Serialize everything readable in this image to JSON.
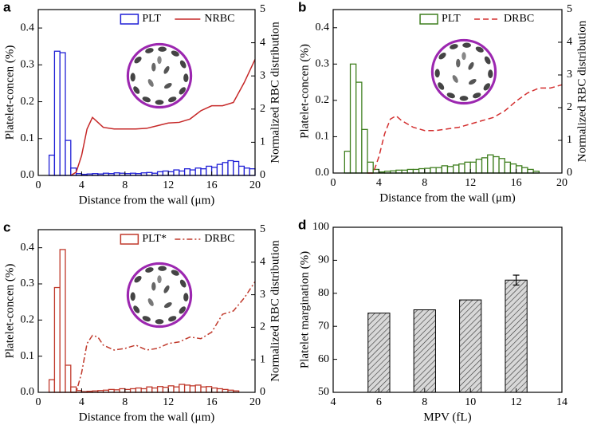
{
  "chart_data": [
    {
      "type": "histogram",
      "label": "a",
      "ylabel": "Platelet-concen (%)",
      "y2label": "Normalized RBC distribution",
      "xlabel": "Distance from the wall (μm)",
      "name": "PLT",
      "color": "#1f1fd6",
      "bins": [
        0,
        0.5,
        1,
        1.5,
        2,
        2.5,
        3,
        3.5,
        4,
        4.5,
        5,
        5.5,
        6,
        6.5,
        7,
        7.5,
        8,
        8.5,
        9,
        9.5,
        10,
        10.5,
        11,
        11.5,
        12,
        12.5,
        13,
        13.5,
        14,
        14.5,
        15,
        15.5,
        16,
        16.5,
        17,
        17.5,
        18,
        18.5,
        19,
        19.5,
        20
      ],
      "values": [
        0,
        0,
        0.055,
        0.337,
        0.333,
        0.095,
        0.02,
        0.005,
        0.003,
        0.004,
        0.005,
        0.004,
        0.006,
        0.005,
        0.007,
        0.006,
        0.005,
        0.006,
        0.005,
        0.007,
        0.008,
        0.006,
        0.01,
        0.012,
        0.01,
        0.015,
        0.012,
        0.018,
        0.015,
        0.02,
        0.018,
        0.025,
        0.022,
        0.03,
        0.035,
        0.04,
        0.038,
        0.025,
        0.02,
        0.018
      ],
      "line": {
        "name": "NRBC",
        "color": "#c62828",
        "dash": "solid",
        "axis": "y2",
        "x": [
          3,
          3.5,
          4,
          4.5,
          5,
          5.5,
          6,
          7,
          8,
          9,
          10,
          11,
          12,
          13,
          14,
          15,
          16,
          17,
          18,
          19,
          20
        ],
        "values": [
          0,
          0.1,
          0.6,
          1.4,
          1.75,
          1.6,
          1.45,
          1.4,
          1.4,
          1.4,
          1.42,
          1.5,
          1.58,
          1.6,
          1.7,
          1.95,
          2.1,
          2.1,
          2.2,
          2.8,
          3.5
        ]
      },
      "xlim": [
        0,
        20
      ],
      "xticks": [
        0,
        4,
        8,
        12,
        16,
        20
      ],
      "ylim": [
        0,
        0.45
      ],
      "yticks": [
        {
          "value": 0,
          "label": "0.0"
        },
        0.1,
        0.2,
        0.3,
        0.4
      ],
      "y2lim": [
        0,
        5
      ],
      "y2ticks": [
        0,
        1,
        2,
        3,
        4,
        5
      ]
    },
    {
      "type": "histogram",
      "label": "b",
      "ylabel": "Platelet-concen (%)",
      "y2label": "Normalized RBC distribution",
      "xlabel": "Distance from the wall (μm)",
      "name": "PLT",
      "color": "#3f7f1f",
      "bins": [
        0,
        0.5,
        1,
        1.5,
        2,
        2.5,
        3,
        3.5,
        4,
        4.5,
        5,
        5.5,
        6,
        6.5,
        7,
        7.5,
        8,
        8.5,
        9,
        9.5,
        10,
        10.5,
        11,
        11.5,
        12,
        12.5,
        13,
        13.5,
        14,
        14.5,
        15,
        15.5,
        16,
        16.5,
        17,
        17.5,
        18,
        18.5,
        19,
        19.5,
        20
      ],
      "values": [
        0,
        0,
        0.06,
        0.3,
        0.25,
        0.12,
        0.03,
        0.01,
        0.003,
        0.005,
        0.006,
        0.008,
        0.008,
        0.01,
        0.01,
        0.012,
        0.013,
        0.015,
        0.015,
        0.02,
        0.018,
        0.022,
        0.025,
        0.03,
        0.03,
        0.038,
        0.042,
        0.05,
        0.045,
        0.04,
        0.03,
        0.025,
        0.02,
        0.015,
        0.01,
        0.005,
        0,
        0,
        0,
        0
      ],
      "line": {
        "name": "DRBC",
        "color": "#d32f2f",
        "dash": "dashed",
        "axis": "y2",
        "x": [
          3,
          3.5,
          4,
          4.5,
          5,
          5.5,
          6,
          7,
          8,
          9,
          10,
          11,
          12,
          13,
          14,
          15,
          16,
          17,
          18,
          19,
          20
        ],
        "values": [
          0,
          0,
          0.5,
          1.2,
          1.65,
          1.75,
          1.6,
          1.4,
          1.3,
          1.3,
          1.35,
          1.4,
          1.5,
          1.6,
          1.7,
          1.9,
          2.2,
          2.45,
          2.6,
          2.6,
          2.7
        ]
      },
      "xlim": [
        0,
        20
      ],
      "xticks": [
        0,
        4,
        8,
        12,
        16,
        20
      ],
      "ylim": [
        0,
        0.45
      ],
      "yticks": [
        {
          "value": 0,
          "label": "0.0"
        },
        0.1,
        0.2,
        0.3,
        0.4
      ],
      "y2lim": [
        0,
        5
      ],
      "y2ticks": [
        0,
        1,
        2,
        3,
        4,
        5
      ]
    },
    {
      "type": "histogram",
      "label": "c",
      "ylabel": "Platelet-concen (%)",
      "y2label": "Normalized RBC distribution",
      "xlabel": "Distance from the wall (μm)",
      "name": "PLT*",
      "color": "#c0392b",
      "bins": [
        0,
        0.5,
        1,
        1.5,
        2,
        2.5,
        3,
        3.5,
        4,
        4.5,
        5,
        5.5,
        6,
        6.5,
        7,
        7.5,
        8,
        8.5,
        9,
        9.5,
        10,
        10.5,
        11,
        11.5,
        12,
        12.5,
        13,
        13.5,
        14,
        14.5,
        15,
        15.5,
        16,
        16.5,
        17,
        17.5,
        18,
        18.5,
        19,
        19.5,
        20
      ],
      "values": [
        0,
        0,
        0.035,
        0.29,
        0.395,
        0.075,
        0.015,
        0.005,
        0.002,
        0.003,
        0.004,
        0.005,
        0.006,
        0.008,
        0.007,
        0.01,
        0.008,
        0.01,
        0.012,
        0.01,
        0.015,
        0.012,
        0.016,
        0.014,
        0.018,
        0.015,
        0.022,
        0.02,
        0.018,
        0.02,
        0.015,
        0.016,
        0.012,
        0.01,
        0.008,
        0.006,
        0.004,
        0,
        0,
        0
      ],
      "line": {
        "name": "DRBC",
        "color": "#c0392b",
        "dash": "dash-dot",
        "axis": "y2",
        "x": [
          3,
          3.5,
          4,
          4.5,
          5,
          5.5,
          6,
          7,
          8,
          9,
          10,
          11,
          12,
          13,
          14,
          15,
          16,
          17,
          18,
          19,
          20
        ],
        "values": [
          0,
          0,
          0.6,
          1.5,
          1.75,
          1.7,
          1.45,
          1.3,
          1.35,
          1.45,
          1.3,
          1.35,
          1.5,
          1.55,
          1.7,
          1.65,
          1.85,
          2.4,
          2.5,
          2.9,
          3.4
        ]
      },
      "xlim": [
        0,
        20
      ],
      "xticks": [
        0,
        4,
        8,
        12,
        16,
        20
      ],
      "ylim": [
        0,
        0.45
      ],
      "yticks": [
        {
          "value": 0,
          "label": "0.0"
        },
        0.1,
        0.2,
        0.3,
        0.4
      ],
      "y2lim": [
        0,
        5
      ],
      "y2ticks": [
        0,
        1,
        2,
        3,
        4,
        5
      ]
    },
    {
      "type": "bar",
      "label": "d",
      "ylabel": "Platelet margination (%)",
      "xlabel": "MPV (fL)",
      "x": [
        6,
        8,
        10,
        12
      ],
      "values": [
        74,
        75,
        78,
        84
      ],
      "errors": [
        null,
        null,
        null,
        1.5
      ],
      "bar_width": 0.95,
      "xlim": [
        4,
        14
      ],
      "xticks": [
        4,
        6,
        8,
        10,
        12,
        14
      ],
      "ylim": [
        50,
        100
      ],
      "yticks": [
        50,
        60,
        70,
        80,
        90,
        100
      ]
    }
  ]
}
